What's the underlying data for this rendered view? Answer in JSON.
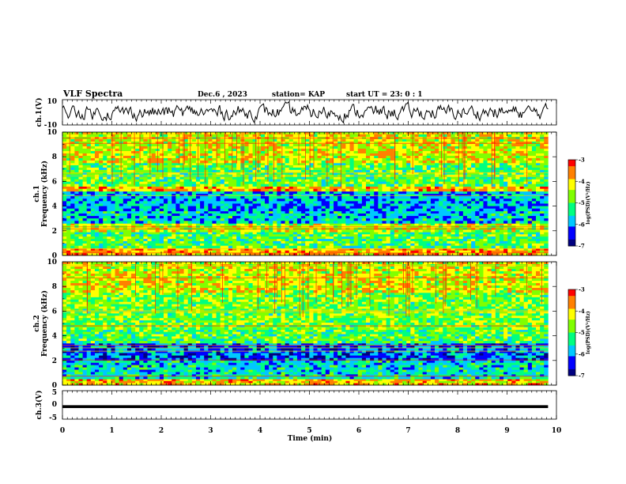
{
  "header": {
    "title": "VLF Spectra",
    "date": "Dec.6 , 2023",
    "station": "station= KAP",
    "start_ut": "start UT = 23: 0 : 1"
  },
  "colors": {
    "waveform": "#000000",
    "colormap": [
      "#000080",
      "#0000ff",
      "#00c8ff",
      "#00ff80",
      "#80ff00",
      "#ffff00",
      "#ff8000",
      "#ff0000",
      "#ffffff"
    ]
  },
  "chart_data": [
    {
      "type": "line",
      "panel": "ch1-waveform",
      "ylabel": "ch.1(V)",
      "ylim": [
        -10,
        10
      ],
      "yticks": [
        "10",
        "-10"
      ],
      "xlim": [
        0,
        10
      ],
      "x_end": 9.83,
      "description_values": {
        "mean": 0,
        "typical_min": -8,
        "typical_max": 8
      }
    },
    {
      "type": "heatmap",
      "panel": "ch1-spectrogram",
      "ylabel": "ch.1\nFrequency (kHz)",
      "ylabel_line1": "ch.1",
      "ylabel_line2": "Frequency (kHz)",
      "ylim": [
        0,
        10
      ],
      "yticks": [
        "0",
        "2",
        "4",
        "6",
        "8",
        "10"
      ],
      "xlim": [
        0,
        10
      ],
      "x_end": 9.83,
      "colorbar": {
        "label": "log(PSD)(V²/Hz)",
        "range": [
          -7,
          -3
        ],
        "ticks": [
          "-3",
          "-4",
          "-5",
          "-6",
          "-7"
        ]
      },
      "bands": [
        {
          "f": [
            0,
            0.6
          ],
          "level": -3.8
        },
        {
          "f": [
            0.6,
            1.9
          ],
          "level": -5.0
        },
        {
          "f": [
            1.9,
            2.6
          ],
          "level": -4.4
        },
        {
          "f": [
            2.6,
            3.6
          ],
          "level": -5.7
        },
        {
          "f": [
            3.6,
            5.2
          ],
          "level": -5.9
        },
        {
          "f": [
            5.2,
            5.6
          ],
          "level": -3.9
        },
        {
          "f": [
            5.6,
            7.5
          ],
          "level": -4.9
        },
        {
          "f": [
            7.5,
            10
          ],
          "level": -4.3
        }
      ]
    },
    {
      "type": "heatmap",
      "panel": "ch2-spectrogram",
      "ylabel": "ch.2\nFrequency (kHz)",
      "ylabel_line1": "ch.2",
      "ylabel_line2": "Frequency (kHz)",
      "ylim": [
        0,
        10
      ],
      "yticks": [
        "0",
        "2",
        "4",
        "6",
        "8",
        "10"
      ],
      "xlim": [
        0,
        10
      ],
      "x_end": 9.83,
      "colorbar": {
        "label": "log(PSD)(V²/Hz)",
        "range": [
          -7,
          -3
        ],
        "ticks": [
          "-3",
          "-4",
          "-5",
          "-6",
          "-7"
        ]
      },
      "bands": [
        {
          "f": [
            0,
            0.5
          ],
          "level": -3.9
        },
        {
          "f": [
            0.5,
            2.0
          ],
          "level": -5.6
        },
        {
          "f": [
            2.0,
            3.4
          ],
          "level": -6.2
        },
        {
          "f": [
            3.4,
            4.5
          ],
          "level": -5.0
        },
        {
          "f": [
            4.5,
            7.5
          ],
          "level": -4.8
        },
        {
          "f": [
            7.5,
            10
          ],
          "level": -4.3
        }
      ]
    },
    {
      "type": "line",
      "panel": "ch3-waveform",
      "ylabel": "ch.3(V)",
      "ylim": [
        -5,
        5
      ],
      "yticks": [
        "5",
        "0",
        "-5"
      ],
      "xlim": [
        0,
        10
      ],
      "x_end": 9.83,
      "xlabel": "Time (min)",
      "xticks": [
        "0",
        "1",
        "2",
        "3",
        "4",
        "5",
        "6",
        "7",
        "8",
        "9",
        "10"
      ],
      "description_values": {
        "mean": -0.6,
        "typical_min": -1.1,
        "typical_max": -0.1
      }
    }
  ]
}
